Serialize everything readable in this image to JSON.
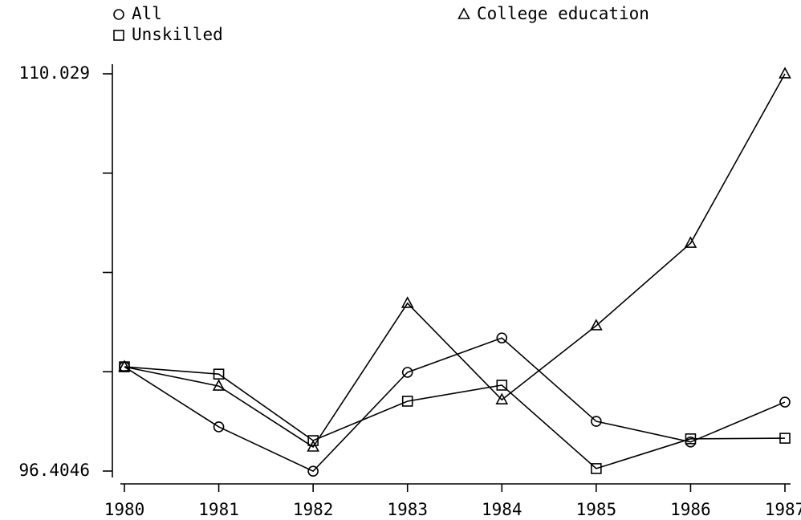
{
  "chart_data": {
    "type": "line",
    "categories": [
      "1980",
      "1981",
      "1982",
      "1983",
      "1984",
      "1985",
      "1986",
      "1987"
    ],
    "series": [
      {
        "name": "All",
        "color": "#000000",
        "marker": "circle",
        "values": [
          99.98,
          97.92,
          96.4,
          99.79,
          100.97,
          98.11,
          97.4,
          98.77
        ]
      },
      {
        "name": "Unskilled",
        "color": "#000000",
        "marker": "square",
        "values": [
          99.98,
          99.73,
          97.45,
          98.8,
          99.35,
          96.49,
          97.51,
          97.53
        ]
      },
      {
        "name": "College education",
        "color": "#000000",
        "marker": "triangle",
        "values": [
          99.98,
          99.32,
          97.23,
          102.16,
          98.85,
          101.39,
          104.22,
          110.03
        ]
      }
    ],
    "ylim": [
      96.4046,
      110.029
    ],
    "yticks": [
      96.4046,
      110.029
    ],
    "yminor_ticks": [
      99.8107,
      103.2168,
      106.6229
    ],
    "grid": false
  }
}
